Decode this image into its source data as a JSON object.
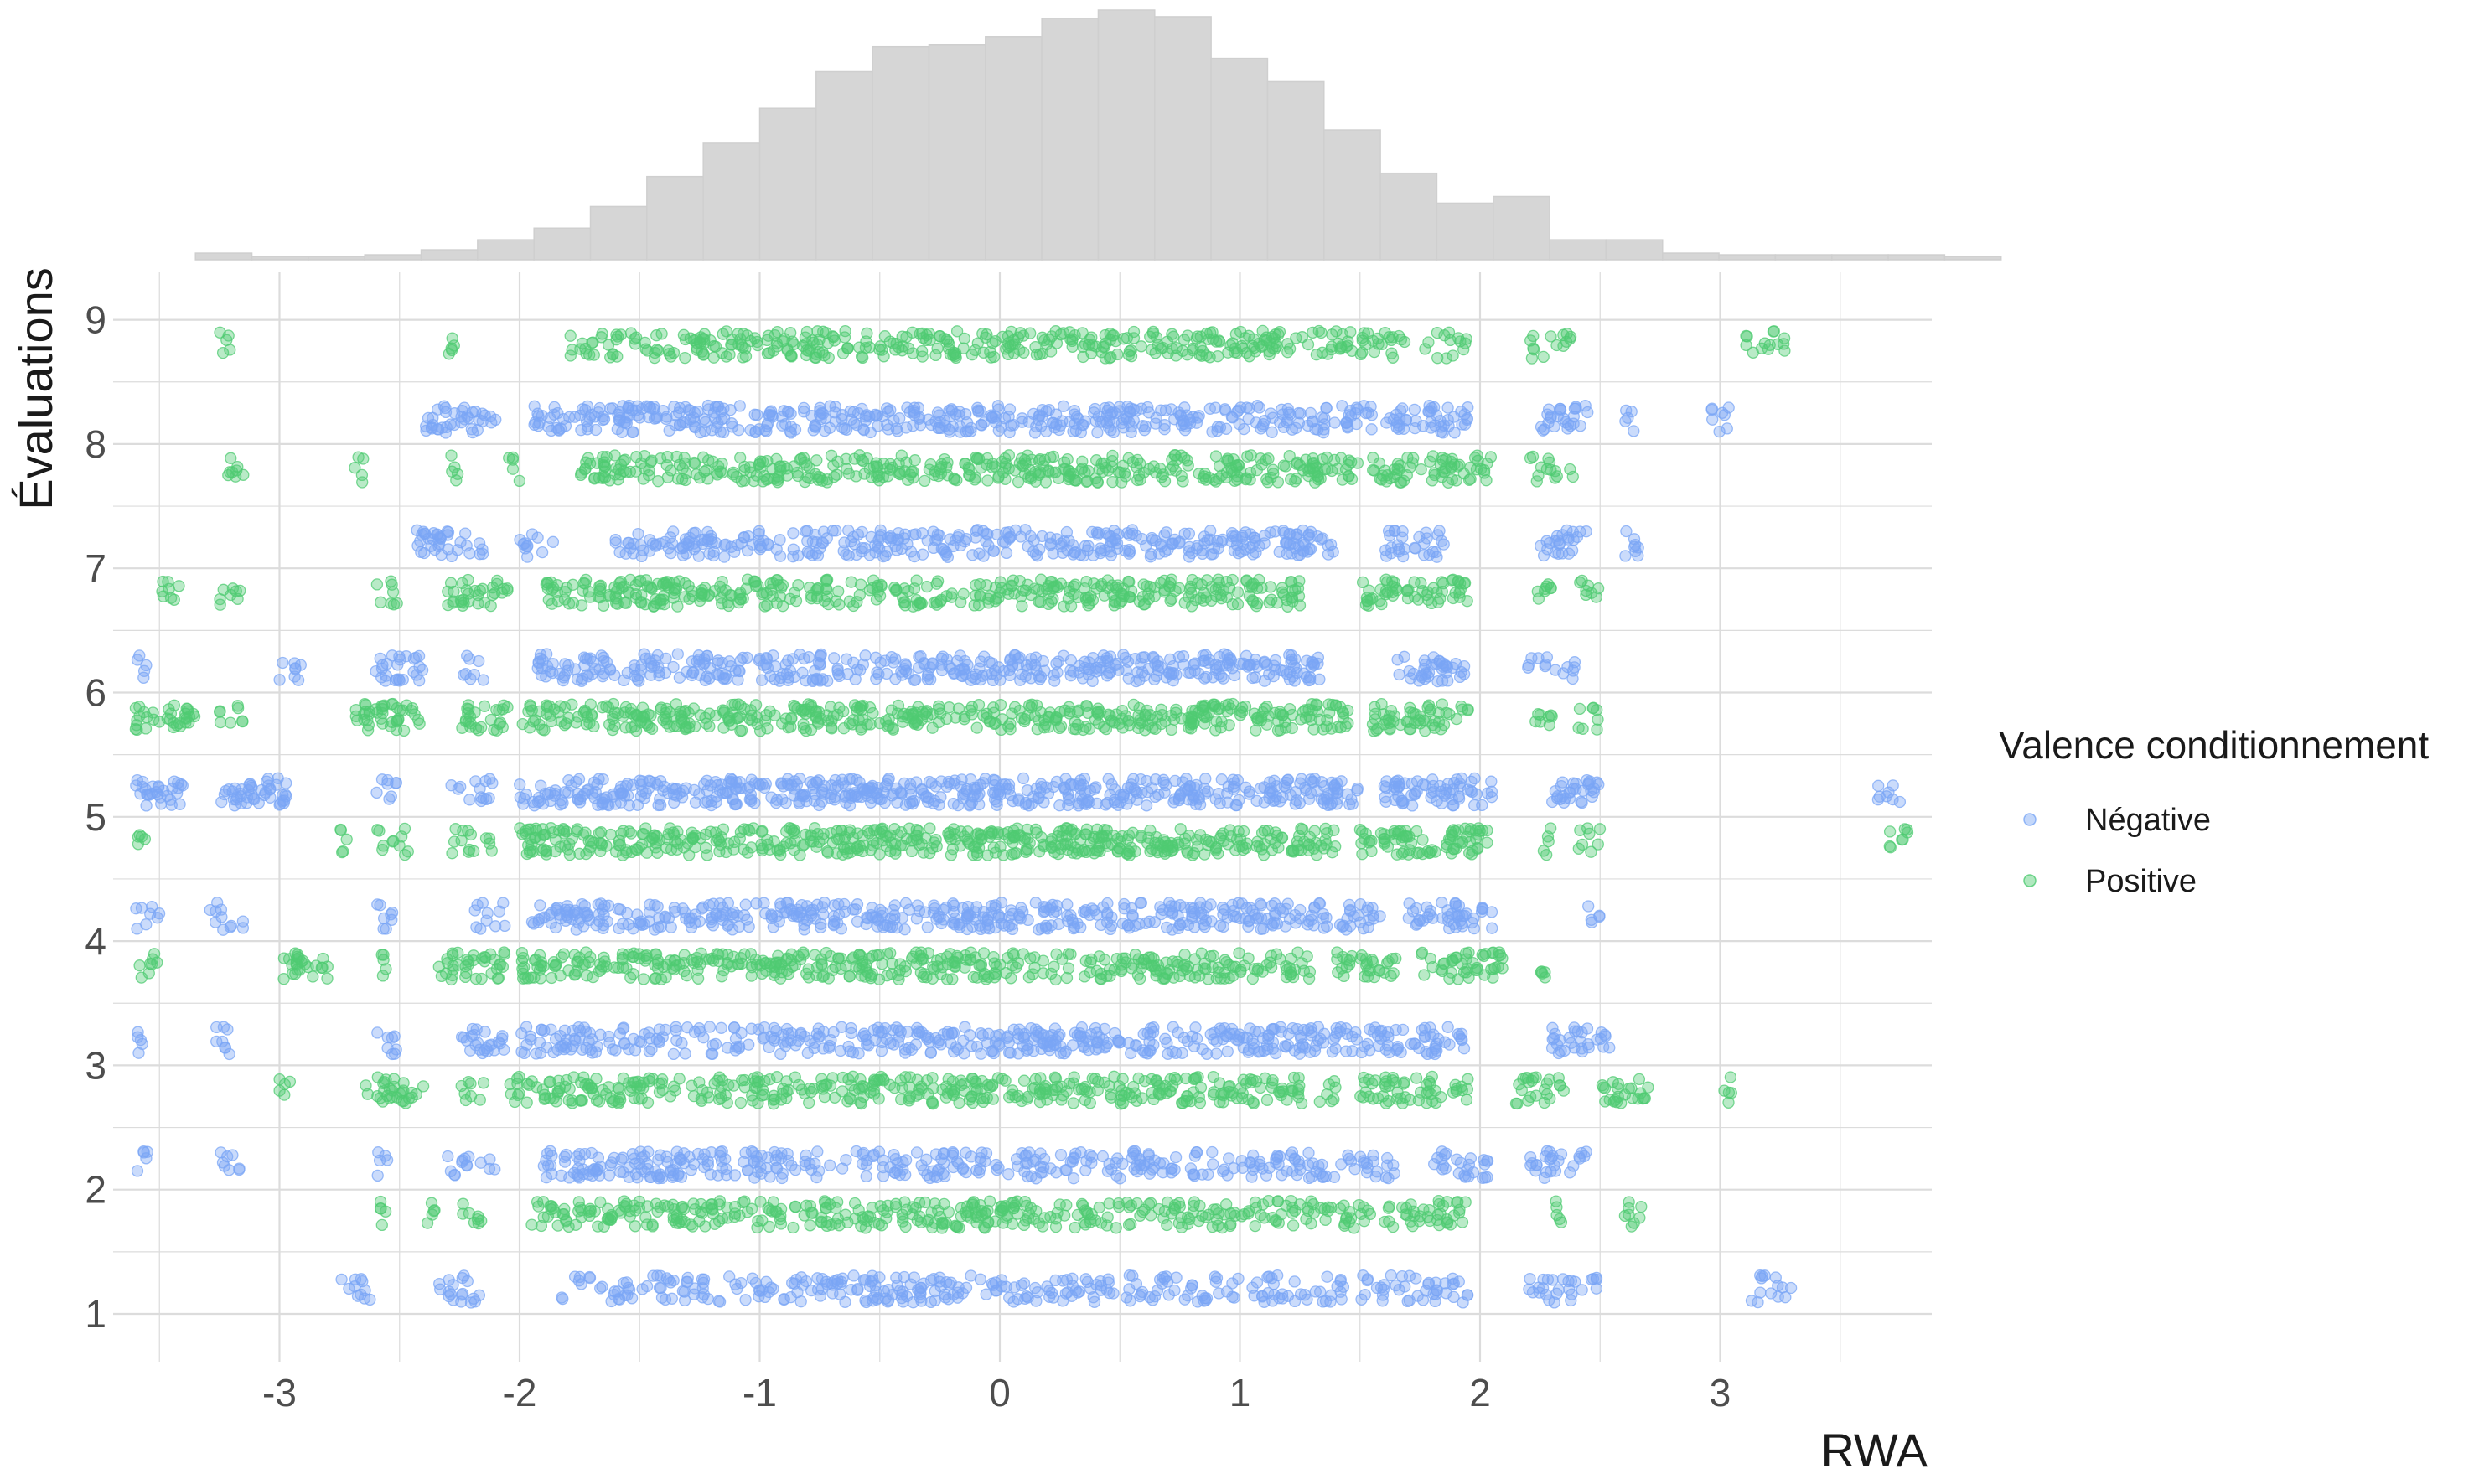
{
  "chart_data": {
    "type": "scatter",
    "title": "",
    "xlabel": "RWA",
    "ylabel": "Évaluations",
    "xlim": [
      -3.7,
      3.85
    ],
    "ylim": [
      0.65,
      9.45
    ],
    "x_ticks": [
      -3,
      -2,
      -1,
      0,
      1,
      2,
      3
    ],
    "y_ticks": [
      1,
      2,
      3,
      4,
      5,
      6,
      7,
      8,
      9
    ],
    "grid": true,
    "jitter": "points jittered vertically around integer ratings; negative above, positive below",
    "legend": {
      "title": "Valence conditionnement",
      "placement": "right"
    },
    "series": [
      {
        "name": "Négative",
        "color": "#7aa6f5",
        "y_offset": 0.2,
        "rows": [
          {
            "y": 1,
            "ranges": [
              [
                -2.75,
                -2.6
              ],
              [
                -2.35,
                -2.15
              ],
              [
                -1.85,
                1.45
              ],
              [
                1.5,
                1.95
              ],
              [
                2.2,
                2.5
              ],
              [
                3.1,
                3.3
              ]
            ],
            "density": 0.6
          },
          {
            "y": 2,
            "ranges": [
              [
                -3.6,
                -3.55
              ],
              [
                -3.25,
                -3.15
              ],
              [
                -2.6,
                -2.55
              ],
              [
                -2.3,
                -2.1
              ],
              [
                -1.9,
                1.65
              ],
              [
                1.8,
                2.05
              ],
              [
                2.2,
                2.45
              ]
            ],
            "density": 0.7
          },
          {
            "y": 3,
            "ranges": [
              [
                -3.6,
                -3.55
              ],
              [
                -3.3,
                -3.2
              ],
              [
                -2.6,
                -2.5
              ],
              [
                -2.25,
                -2.05
              ],
              [
                -2.0,
                1.95
              ],
              [
                2.3,
                2.55
              ]
            ],
            "density": 0.8
          },
          {
            "y": 4,
            "ranges": [
              [
                -3.6,
                -3.5
              ],
              [
                -3.3,
                -3.15
              ],
              [
                -2.6,
                -2.5
              ],
              [
                -2.2,
                -2.05
              ],
              [
                -1.95,
                1.6
              ],
              [
                1.7,
                2.05
              ],
              [
                2.45,
                2.5
              ]
            ],
            "density": 0.85
          },
          {
            "y": 5,
            "ranges": [
              [
                -3.6,
                -3.4
              ],
              [
                -3.25,
                -2.95
              ],
              [
                -2.6,
                -2.5
              ],
              [
                -2.3,
                -2.1
              ],
              [
                -2.0,
                1.5
              ],
              [
                1.6,
                2.05
              ],
              [
                2.3,
                2.5
              ],
              [
                3.65,
                3.75
              ]
            ],
            "density": 1.0
          },
          {
            "y": 6,
            "ranges": [
              [
                -3.6,
                -3.55
              ],
              [
                -3.0,
                -2.9
              ],
              [
                -2.6,
                -2.4
              ],
              [
                -2.25,
                -2.15
              ],
              [
                -1.95,
                1.35
              ],
              [
                1.65,
                1.95
              ],
              [
                2.2,
                2.4
              ]
            ],
            "density": 0.85
          },
          {
            "y": 7,
            "ranges": [
              [
                -2.45,
                -2.15
              ],
              [
                -2.0,
                -1.85
              ],
              [
                -1.6,
                1.4
              ],
              [
                1.6,
                1.85
              ],
              [
                2.25,
                2.45
              ],
              [
                2.6,
                2.7
              ]
            ],
            "density": 0.8
          },
          {
            "y": 8,
            "ranges": [
              [
                -2.4,
                -2.1
              ],
              [
                -1.95,
                1.55
              ],
              [
                1.6,
                1.95
              ],
              [
                2.25,
                2.45
              ],
              [
                2.6,
                2.65
              ],
              [
                2.95,
                3.05
              ]
            ],
            "density": 0.85
          }
        ]
      },
      {
        "name": "Positive",
        "color": "#4fcb72",
        "y_offset": -0.2,
        "rows": [
          {
            "y": 2,
            "ranges": [
              [
                -2.6,
                -2.55
              ],
              [
                -2.4,
                -2.35
              ],
              [
                -2.25,
                -2.15
              ],
              [
                -1.95,
                1.55
              ],
              [
                1.6,
                1.95
              ],
              [
                2.3,
                2.35
              ],
              [
                2.6,
                2.7
              ]
            ],
            "density": 0.75
          },
          {
            "y": 3,
            "ranges": [
              [
                -3.0,
                -2.95
              ],
              [
                -2.65,
                -2.4
              ],
              [
                -2.25,
                -2.15
              ],
              [
                -2.05,
                1.4
              ],
              [
                1.5,
                1.95
              ],
              [
                2.15,
                2.35
              ],
              [
                2.5,
                2.7
              ],
              [
                3.0,
                3.05
              ]
            ],
            "density": 0.8
          },
          {
            "y": 4,
            "ranges": [
              [
                -3.6,
                -3.5
              ],
              [
                -3.0,
                -2.8
              ],
              [
                -2.6,
                -2.55
              ],
              [
                -2.35,
                -2.05
              ],
              [
                -2.0,
                1.3
              ],
              [
                1.4,
                1.65
              ],
              [
                1.75,
                2.1
              ],
              [
                2.25,
                2.3
              ]
            ],
            "density": 0.85
          },
          {
            "y": 5,
            "ranges": [
              [
                -3.6,
                -3.55
              ],
              [
                -2.75,
                -2.7
              ],
              [
                -2.6,
                -2.45
              ],
              [
                -2.3,
                -2.1
              ],
              [
                -2.0,
                1.4
              ],
              [
                1.5,
                2.05
              ],
              [
                2.25,
                2.3
              ],
              [
                2.4,
                2.5
              ],
              [
                3.7,
                3.8
              ]
            ],
            "density": 1.0
          },
          {
            "y": 6,
            "ranges": [
              [
                -3.6,
                -3.35
              ],
              [
                -3.25,
                -3.15
              ],
              [
                -2.7,
                -2.4
              ],
              [
                -2.25,
                -2.05
              ],
              [
                -2.0,
                1.45
              ],
              [
                1.55,
                1.95
              ],
              [
                2.2,
                2.3
              ],
              [
                2.4,
                2.5
              ]
            ],
            "density": 0.9
          },
          {
            "y": 7,
            "ranges": [
              [
                -3.5,
                -3.4
              ],
              [
                -3.25,
                -3.15
              ],
              [
                -2.6,
                -2.5
              ],
              [
                -2.3,
                -2.05
              ],
              [
                -1.9,
                1.25
              ],
              [
                1.5,
                1.95
              ],
              [
                2.2,
                2.3
              ],
              [
                2.4,
                2.5
              ]
            ],
            "density": 0.85
          },
          {
            "y": 8,
            "ranges": [
              [
                -3.25,
                -3.15
              ],
              [
                -2.7,
                -2.65
              ],
              [
                -2.3,
                -2.25
              ],
              [
                -2.05,
                -2.0
              ],
              [
                -1.75,
                1.5
              ],
              [
                1.55,
                2.05
              ],
              [
                2.2,
                2.4
              ]
            ],
            "density": 0.85
          },
          {
            "y": 9,
            "ranges": [
              [
                -3.25,
                -3.2
              ],
              [
                -2.3,
                -2.25
              ],
              [
                -1.8,
                1.7
              ],
              [
                1.75,
                1.95
              ],
              [
                2.2,
                2.4
              ],
              [
                3.1,
                3.3
              ]
            ],
            "density": 0.75
          }
        ]
      }
    ],
    "histogram": {
      "bin_width": 0.235,
      "bin_start": -3.35,
      "counts": [
        4,
        2,
        2,
        3,
        6,
        12,
        19,
        32,
        50,
        70,
        91,
        113,
        128,
        129,
        134,
        145,
        150,
        146,
        121,
        107,
        78,
        52,
        34,
        38,
        12,
        12,
        4,
        3,
        3,
        3,
        3,
        2
      ]
    }
  }
}
